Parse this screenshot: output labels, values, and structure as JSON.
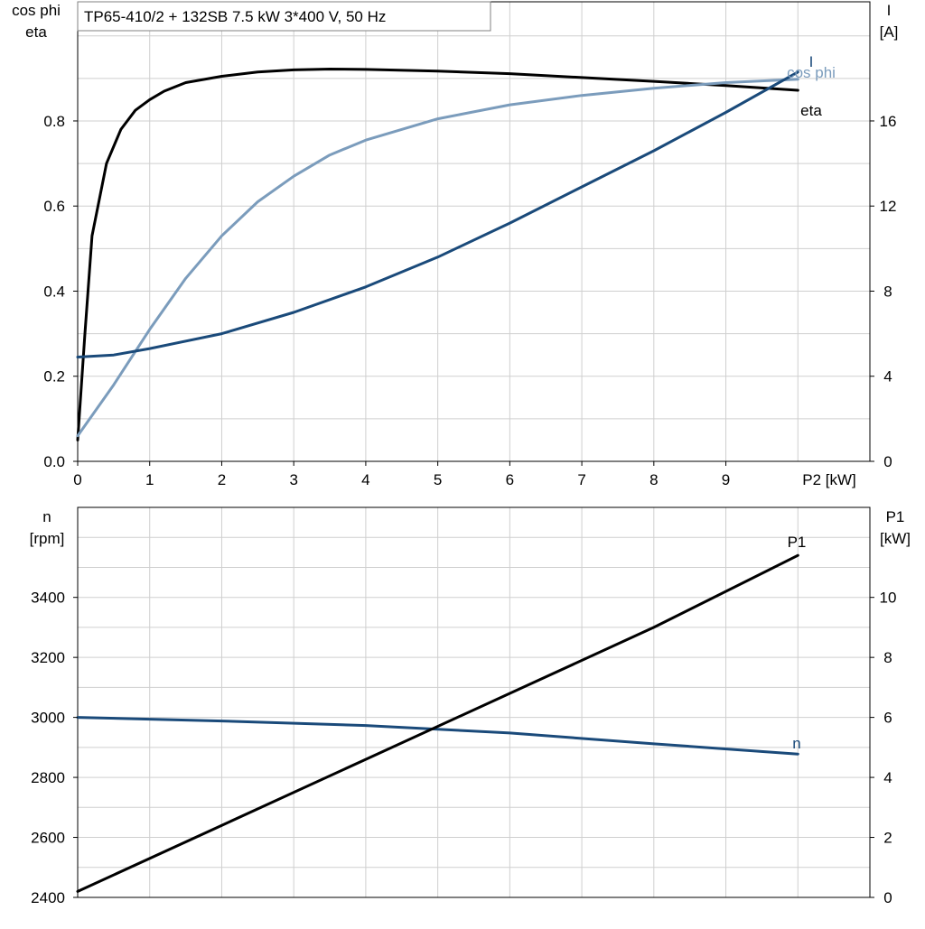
{
  "chart_data": [
    {
      "type": "line",
      "title": "TP65-410/2 + 132SB   7.5 kW   3*400 V, 50 Hz",
      "xlabel": "P2 [kW]",
      "ylabel_left": [
        "cos phi",
        "eta"
      ],
      "ylabel_right": [
        "I",
        "[A]"
      ],
      "xlim": [
        0,
        11
      ],
      "ylim_left": [
        0,
        1.08
      ],
      "ylim_right": [
        0,
        21.6
      ],
      "x_ticks": [
        "0",
        "1",
        "2",
        "3",
        "4",
        "5",
        "6",
        "7",
        "8",
        "9"
      ],
      "y_left_ticks": [
        "0.0",
        "0.2",
        "0.4",
        "0.6",
        "0.8"
      ],
      "y_right_ticks": [
        "0",
        "4",
        "8",
        "12",
        "16"
      ],
      "grid": true,
      "series": [
        {
          "name": "eta",
          "axis": "left",
          "color": "#000000",
          "x": [
            0,
            0.1,
            0.2,
            0.4,
            0.6,
            0.8,
            1.0,
            1.2,
            1.5,
            2,
            2.5,
            3,
            3.5,
            4,
            5,
            6,
            7,
            8,
            9,
            10
          ],
          "y": [
            0.05,
            0.3,
            0.53,
            0.7,
            0.78,
            0.825,
            0.85,
            0.87,
            0.89,
            0.905,
            0.915,
            0.92,
            0.922,
            0.921,
            0.917,
            0.911,
            0.902,
            0.893,
            0.883,
            0.872
          ]
        },
        {
          "name": "cos phi",
          "axis": "left",
          "color": "#7b9cbc",
          "x": [
            0,
            0.5,
            1,
            1.5,
            2,
            2.5,
            3,
            3.5,
            4,
            5,
            6,
            7,
            8,
            9,
            10
          ],
          "y": [
            0.06,
            0.18,
            0.31,
            0.43,
            0.53,
            0.61,
            0.67,
            0.72,
            0.755,
            0.805,
            0.838,
            0.86,
            0.877,
            0.89,
            0.898
          ]
        },
        {
          "name": "I",
          "axis": "right",
          "color": "#1a4a7a",
          "x": [
            0,
            0.5,
            1,
            2,
            3,
            4,
            5,
            6,
            7,
            8,
            9,
            10
          ],
          "y": [
            4.9,
            5.0,
            5.3,
            6.0,
            7.0,
            8.2,
            9.6,
            11.2,
            12.9,
            14.6,
            16.4,
            18.3
          ]
        }
      ],
      "labels": {
        "eta": "eta",
        "cosphi": "cos phi",
        "i": "I"
      }
    },
    {
      "type": "line",
      "xlim": [
        0,
        11
      ],
      "ylabel_left": [
        "n",
        "[rpm]"
      ],
      "ylabel_right": [
        "P1",
        "[kW]"
      ],
      "ylim_left": [
        2400,
        3700
      ],
      "ylim_right": [
        0,
        13
      ],
      "y_left_ticks": [
        "2400",
        "2600",
        "2800",
        "3000",
        "3200",
        "3400"
      ],
      "y_right_ticks": [
        "0",
        "2",
        "4",
        "6",
        "8",
        "10"
      ],
      "grid": true,
      "series": [
        {
          "name": "n",
          "axis": "left",
          "color": "#1a4a7a",
          "x": [
            0,
            2,
            4,
            6,
            8,
            10
          ],
          "y": [
            3000,
            2988,
            2973,
            2948,
            2912,
            2878
          ]
        },
        {
          "name": "P1",
          "axis": "right",
          "color": "#000000",
          "x": [
            0,
            2,
            4,
            6,
            8,
            10
          ],
          "y": [
            0.2,
            2.4,
            4.6,
            6.8,
            9.0,
            11.4
          ]
        }
      ],
      "labels": {
        "n": "n",
        "p1": "P1"
      }
    }
  ]
}
